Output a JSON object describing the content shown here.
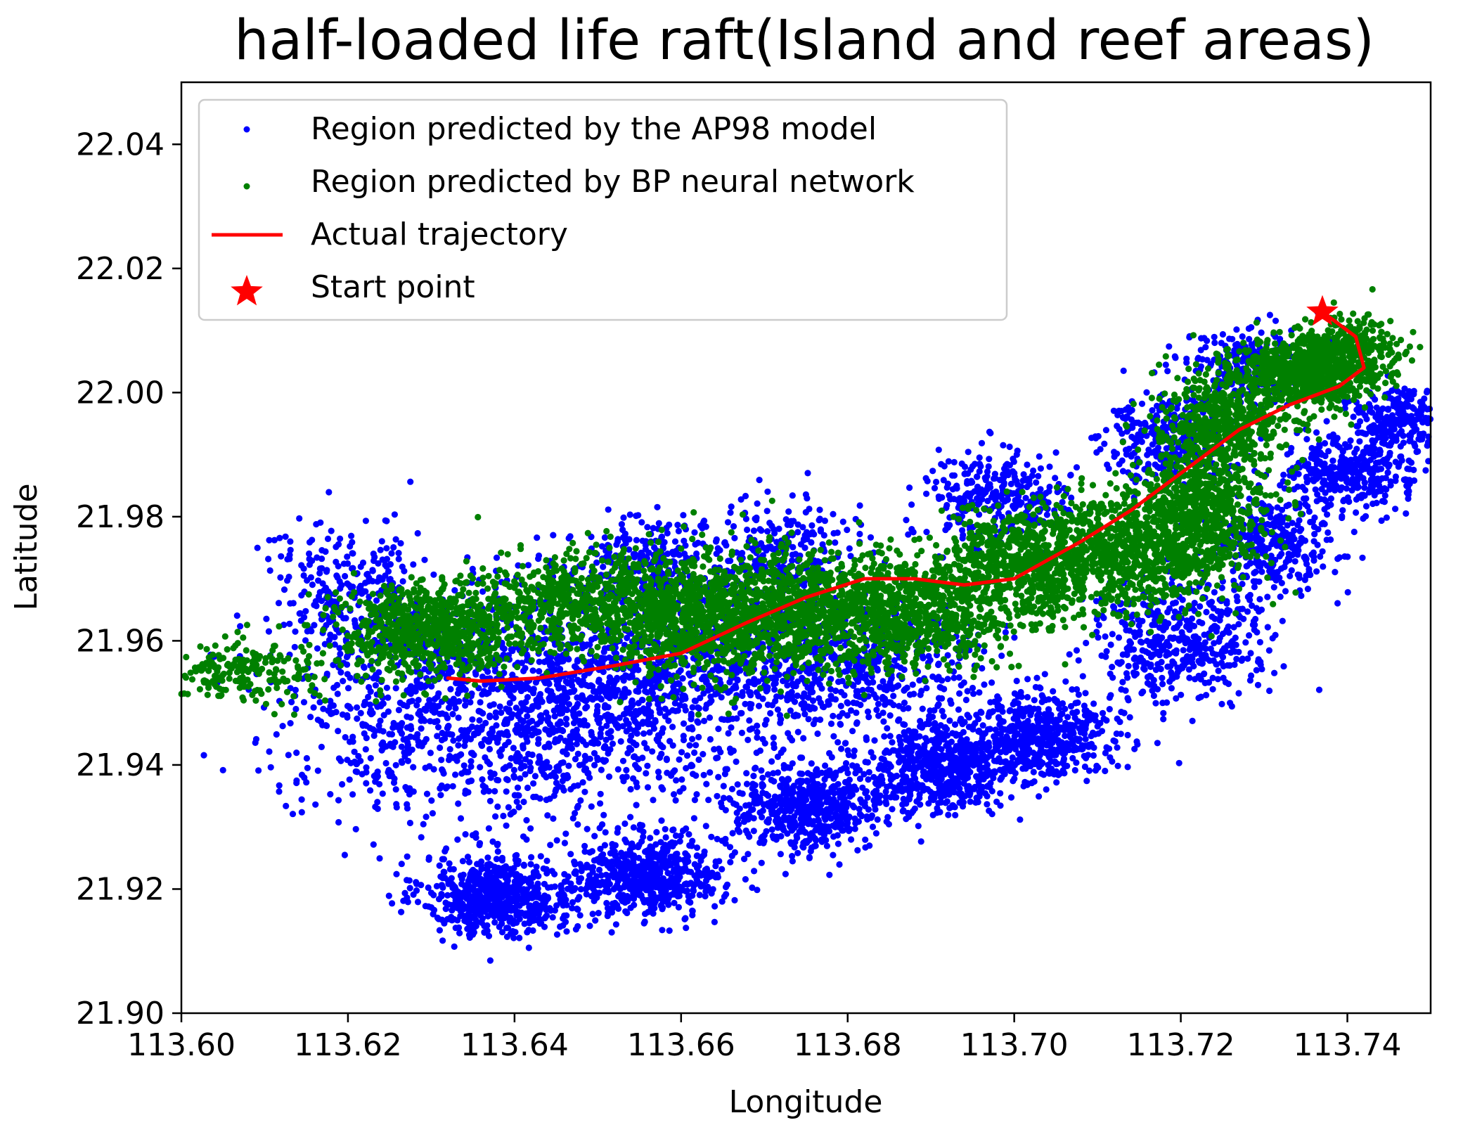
{
  "chart_data": {
    "type": "scatter",
    "title": "half-loaded life raft(Island and reef areas)",
    "xlabel": "Longitude",
    "ylabel": "Latitude",
    "xlim": [
      113.6,
      113.75
    ],
    "ylim": [
      21.9,
      22.05
    ],
    "x_ticks": [
      "113.60",
      "113.62",
      "113.64",
      "113.66",
      "113.68",
      "113.70",
      "113.72",
      "113.74"
    ],
    "x_tick_values": [
      113.6,
      113.62,
      113.64,
      113.66,
      113.68,
      113.7,
      113.72,
      113.74
    ],
    "y_ticks": [
      "21.90",
      "21.92",
      "21.94",
      "21.96",
      "21.98",
      "22.00",
      "22.02",
      "22.04"
    ],
    "y_tick_values": [
      21.9,
      21.92,
      21.94,
      21.96,
      21.98,
      22.0,
      22.02,
      22.04
    ],
    "grid": false,
    "legend_position": "top-left",
    "colors": {
      "ap98": "#0000ff",
      "bp": "#008000",
      "trajectory": "#ff0000",
      "start": "#ff0000"
    },
    "series": [
      {
        "name": "Region predicted by the AP98 model",
        "kind": "scatter",
        "color": "#0000ff",
        "clusters": [
          {
            "cx": 113.638,
            "cy": 21.919,
            "sx": 0.0045,
            "sy": 0.0032,
            "n": 650
          },
          {
            "cx": 113.656,
            "cy": 21.922,
            "sx": 0.0045,
            "sy": 0.0032,
            "n": 600
          },
          {
            "cx": 113.675,
            "cy": 21.933,
            "sx": 0.005,
            "sy": 0.0035,
            "n": 550
          },
          {
            "cx": 113.691,
            "cy": 21.939,
            "sx": 0.0045,
            "sy": 0.0035,
            "n": 550
          },
          {
            "cx": 113.703,
            "cy": 21.945,
            "sx": 0.0045,
            "sy": 0.0035,
            "n": 550
          },
          {
            "cx": 113.632,
            "cy": 21.95,
            "sx": 0.01,
            "sy": 0.009,
            "n": 900
          },
          {
            "cx": 113.648,
            "cy": 21.95,
            "sx": 0.008,
            "sy": 0.0085,
            "n": 700
          },
          {
            "cx": 113.664,
            "cy": 21.955,
            "sx": 0.0075,
            "sy": 0.007,
            "n": 600
          },
          {
            "cx": 113.682,
            "cy": 21.955,
            "sx": 0.007,
            "sy": 0.006,
            "n": 500
          },
          {
            "cx": 113.62,
            "cy": 21.968,
            "sx": 0.005,
            "sy": 0.005,
            "n": 250
          },
          {
            "cx": 113.656,
            "cy": 21.972,
            "sx": 0.0045,
            "sy": 0.004,
            "n": 250
          },
          {
            "cx": 113.672,
            "cy": 21.974,
            "sx": 0.0045,
            "sy": 0.004,
            "n": 250
          },
          {
            "cx": 113.698,
            "cy": 21.983,
            "sx": 0.0045,
            "sy": 0.0035,
            "n": 300
          },
          {
            "cx": 113.718,
            "cy": 21.993,
            "sx": 0.004,
            "sy": 0.0035,
            "n": 300
          },
          {
            "cx": 113.72,
            "cy": 21.96,
            "sx": 0.005,
            "sy": 0.0045,
            "n": 450
          },
          {
            "cx": 113.731,
            "cy": 21.975,
            "sx": 0.004,
            "sy": 0.004,
            "n": 300
          },
          {
            "cx": 113.74,
            "cy": 21.987,
            "sx": 0.004,
            "sy": 0.003,
            "n": 350
          },
          {
            "cx": 113.746,
            "cy": 21.996,
            "sx": 0.003,
            "sy": 0.0025,
            "n": 250
          },
          {
            "cx": 113.728,
            "cy": 22.004,
            "sx": 0.004,
            "sy": 0.003,
            "n": 250
          }
        ]
      },
      {
        "name": "Region predicted by BP neural network",
        "kind": "scatter",
        "color": "#008000",
        "clusters": [
          {
            "cx": 113.607,
            "cy": 21.955,
            "sx": 0.005,
            "sy": 0.0025,
            "n": 220
          },
          {
            "cx": 113.63,
            "cy": 21.962,
            "sx": 0.006,
            "sy": 0.004,
            "n": 800
          },
          {
            "cx": 113.648,
            "cy": 21.966,
            "sx": 0.006,
            "sy": 0.004,
            "n": 500
          },
          {
            "cx": 113.662,
            "cy": 21.964,
            "sx": 0.006,
            "sy": 0.005,
            "n": 900
          },
          {
            "cx": 113.675,
            "cy": 21.965,
            "sx": 0.006,
            "sy": 0.0045,
            "n": 700
          },
          {
            "cx": 113.688,
            "cy": 21.965,
            "sx": 0.006,
            "sy": 0.0045,
            "n": 700
          },
          {
            "cx": 113.701,
            "cy": 21.972,
            "sx": 0.0055,
            "sy": 0.0045,
            "n": 700
          },
          {
            "cx": 113.713,
            "cy": 21.975,
            "sx": 0.005,
            "sy": 0.005,
            "n": 600
          },
          {
            "cx": 113.722,
            "cy": 21.98,
            "sx": 0.004,
            "sy": 0.006,
            "n": 700
          },
          {
            "cx": 113.725,
            "cy": 21.995,
            "sx": 0.004,
            "sy": 0.004,
            "n": 500
          },
          {
            "cx": 113.735,
            "cy": 22.003,
            "sx": 0.0045,
            "sy": 0.003,
            "n": 700
          },
          {
            "cx": 113.74,
            "cy": 22.007,
            "sx": 0.003,
            "sy": 0.0025,
            "n": 300
          }
        ]
      },
      {
        "name": "Actual trajectory",
        "kind": "line",
        "color": "#ff0000",
        "x": [
          113.737,
          113.741,
          113.742,
          113.739,
          113.733,
          113.727,
          113.72,
          113.714,
          113.708,
          113.7,
          113.694,
          113.688,
          113.682,
          113.675,
          113.668,
          113.66,
          113.652,
          113.643,
          113.636,
          113.632
        ],
        "y": [
          22.013,
          22.009,
          22.004,
          22.001,
          21.998,
          21.994,
          21.987,
          21.981,
          21.976,
          21.97,
          21.969,
          21.97,
          21.97,
          21.967,
          21.963,
          21.958,
          21.956,
          21.954,
          21.9535,
          21.954
        ]
      },
      {
        "name": "Start point",
        "kind": "marker",
        "color": "#ff0000",
        "x": [
          113.737
        ],
        "y": [
          22.013
        ]
      }
    ]
  }
}
